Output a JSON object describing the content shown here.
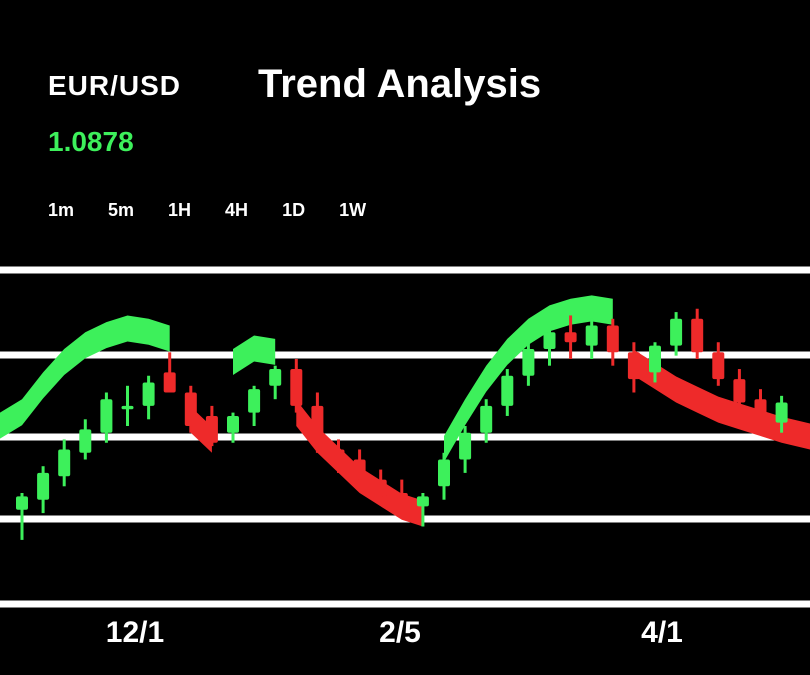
{
  "header": {
    "symbol": "EUR/USD",
    "title": "Trend Analysis",
    "price": "1.0878"
  },
  "timeframes": [
    "1m",
    "5m",
    "1H",
    "4H",
    "1D",
    "1W"
  ],
  "colors": {
    "background": "#000000",
    "bull": "#3df05b",
    "bear": "#ee2a2a",
    "grid": "#ffffff"
  },
  "chart_data": {
    "type": "candlestick",
    "x_ticks": [
      "12/1",
      "2/5",
      "4/1"
    ],
    "ylim": [
      0,
      100
    ],
    "grid": true,
    "candles": [
      {
        "o": 15,
        "h": 20,
        "l": 6,
        "c": 19
      },
      {
        "o": 18,
        "h": 28,
        "l": 14,
        "c": 26
      },
      {
        "o": 25,
        "h": 36,
        "l": 22,
        "c": 33
      },
      {
        "o": 32,
        "h": 42,
        "l": 30,
        "c": 39
      },
      {
        "o": 38,
        "h": 50,
        "l": 35,
        "c": 48
      },
      {
        "o": 45,
        "h": 52,
        "l": 40,
        "c": 46
      },
      {
        "o": 46,
        "h": 55,
        "l": 42,
        "c": 53
      },
      {
        "o": 56,
        "h": 62,
        "l": 50,
        "c": 50
      },
      {
        "o": 50,
        "h": 52,
        "l": 38,
        "c": 40
      },
      {
        "o": 43,
        "h": 46,
        "l": 34,
        "c": 35
      },
      {
        "o": 38,
        "h": 44,
        "l": 35,
        "c": 43
      },
      {
        "o": 44,
        "h": 52,
        "l": 40,
        "c": 51
      },
      {
        "o": 52,
        "h": 58,
        "l": 48,
        "c": 57
      },
      {
        "o": 57,
        "h": 60,
        "l": 44,
        "c": 46
      },
      {
        "o": 46,
        "h": 50,
        "l": 32,
        "c": 34
      },
      {
        "o": 33,
        "h": 36,
        "l": 26,
        "c": 28
      },
      {
        "o": 30,
        "h": 33,
        "l": 22,
        "c": 24
      },
      {
        "o": 24,
        "h": 27,
        "l": 18,
        "c": 19
      },
      {
        "o": 20,
        "h": 24,
        "l": 13,
        "c": 14
      },
      {
        "o": 16,
        "h": 20,
        "l": 10,
        "c": 19
      },
      {
        "o": 22,
        "h": 32,
        "l": 18,
        "c": 30
      },
      {
        "o": 30,
        "h": 40,
        "l": 26,
        "c": 38
      },
      {
        "o": 38,
        "h": 48,
        "l": 35,
        "c": 46
      },
      {
        "o": 46,
        "h": 57,
        "l": 43,
        "c": 55
      },
      {
        "o": 55,
        "h": 65,
        "l": 52,
        "c": 63
      },
      {
        "o": 63,
        "h": 70,
        "l": 58,
        "c": 68
      },
      {
        "o": 68,
        "h": 73,
        "l": 60,
        "c": 65
      },
      {
        "o": 64,
        "h": 72,
        "l": 60,
        "c": 70
      },
      {
        "o": 70,
        "h": 72,
        "l": 58,
        "c": 62
      },
      {
        "o": 62,
        "h": 65,
        "l": 50,
        "c": 54
      },
      {
        "o": 56,
        "h": 65,
        "l": 53,
        "c": 64
      },
      {
        "o": 64,
        "h": 74,
        "l": 61,
        "c": 72
      },
      {
        "o": 72,
        "h": 75,
        "l": 60,
        "c": 62
      },
      {
        "o": 62,
        "h": 65,
        "l": 52,
        "c": 54
      },
      {
        "o": 54,
        "h": 57,
        "l": 45,
        "c": 47
      },
      {
        "o": 48,
        "h": 51,
        "l": 40,
        "c": 42
      },
      {
        "o": 41,
        "h": 49,
        "l": 38,
        "c": 47
      }
    ],
    "trend_band": [
      {
        "from": 0,
        "to": 7,
        "direction": "up",
        "values": [
          48,
          56,
          63,
          68,
          71,
          73,
          72,
          70
        ]
      },
      {
        "from": 8,
        "to": 9,
        "direction": "down",
        "values": [
          38,
          32
        ]
      },
      {
        "from": 10,
        "to": 12,
        "direction": "up",
        "values": [
          63,
          67,
          66
        ]
      },
      {
        "from": 13,
        "to": 19,
        "direction": "down",
        "values": [
          40,
          32,
          26,
          20,
          16,
          12,
          10
        ]
      },
      {
        "from": 20,
        "to": 28,
        "direction": "up",
        "values": [
          37,
          48,
          58,
          66,
          72,
          76,
          78,
          79,
          78
        ]
      },
      {
        "from": 29,
        "to": 36,
        "direction": "down",
        "values": [
          55,
          51,
          47,
          44,
          41,
          39,
          37,
          35
        ]
      }
    ]
  }
}
